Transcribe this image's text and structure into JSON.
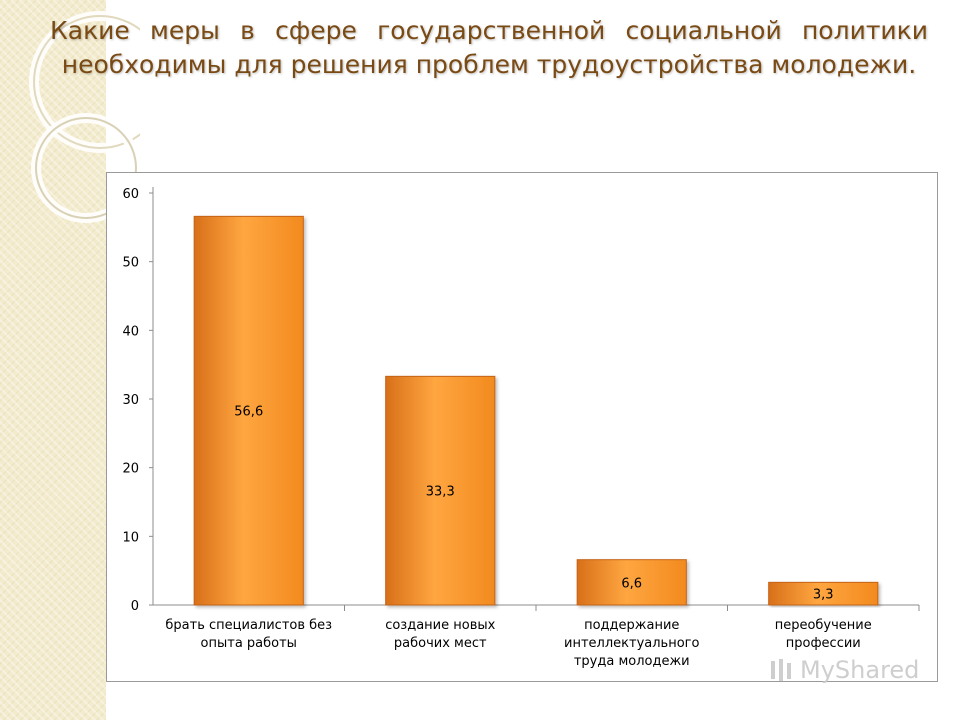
{
  "slide": {
    "title": "Какие меры в сфере государственной социальной политики необходимы для решения проблем трудоустройства молодежи.",
    "watermark_text": "MyShared",
    "title_color": "#7a4a14",
    "background_strip_color": "#f3ebcd"
  },
  "chart_data": {
    "type": "bar",
    "title": "",
    "xlabel": "",
    "ylabel": "",
    "ylim": [
      0,
      60
    ],
    "yticks": [
      0,
      10,
      20,
      30,
      40,
      50,
      60
    ],
    "grid": false,
    "legend": "none",
    "categories": [
      "брать специалистов без опыта работы",
      "создание новых рабочих мест",
      "поддержание интеллектуального труда молодежи",
      "переобучение профессии"
    ],
    "category_lines": [
      [
        "брать специалистов без",
        "опыта работы"
      ],
      [
        "создание новых",
        "рабочих мест"
      ],
      [
        "поддержание",
        "интеллектуального",
        "труда молодежи"
      ],
      [
        "переобучение",
        "профессии"
      ]
    ],
    "values": [
      56.6,
      33.3,
      6.6,
      3.3
    ],
    "data_labels": [
      "56,6",
      "33,3",
      "6,6",
      "3,3"
    ],
    "bar_color": "#f28a1e",
    "bar_color_light": "#ffa640",
    "bar_color_dark": "#d8701a"
  }
}
